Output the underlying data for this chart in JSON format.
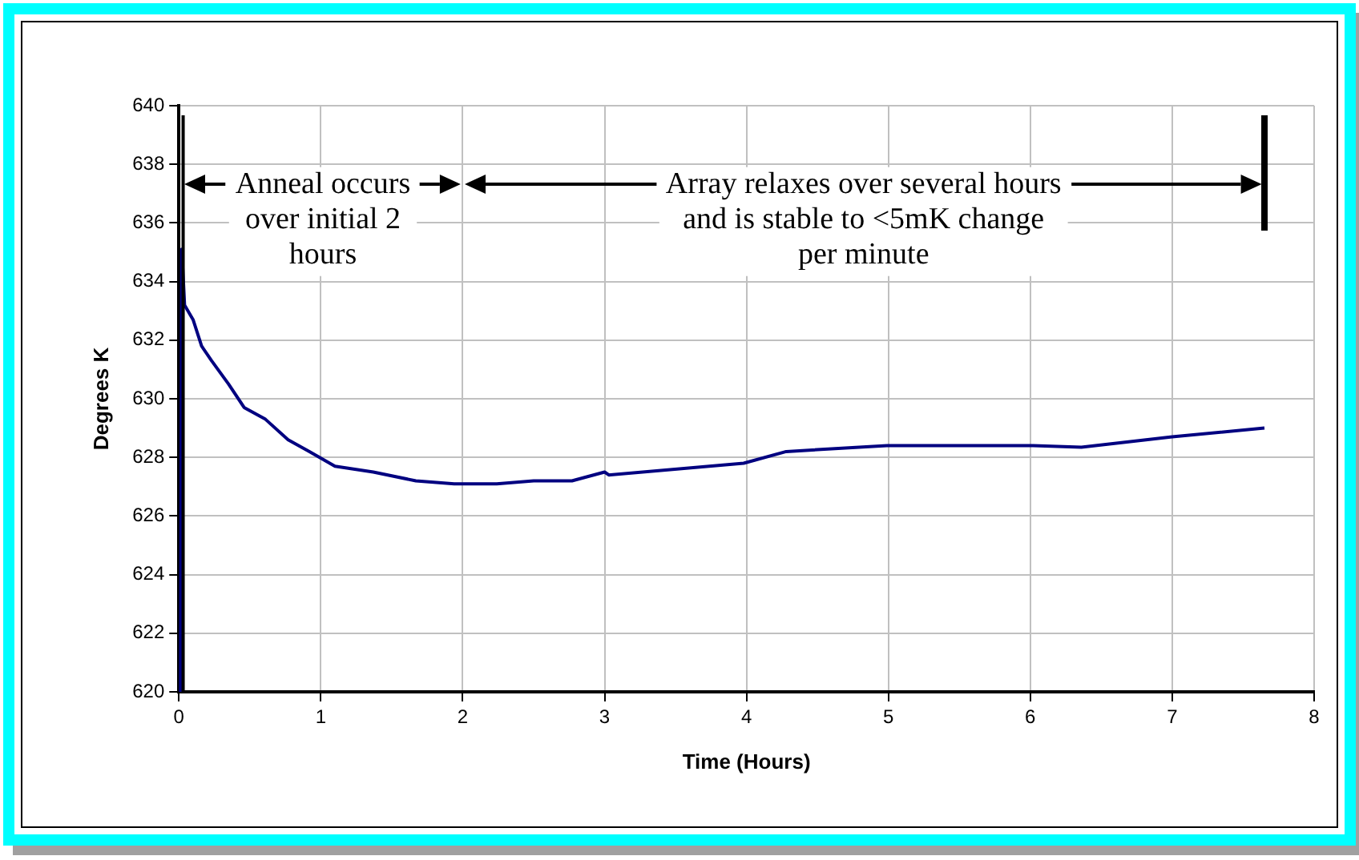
{
  "chart_data": {
    "type": "line",
    "xlabel": "Time (Hours)",
    "ylabel": "Degrees K",
    "x": [
      0.01,
      0.02,
      0.03,
      0.04,
      0.1,
      0.16,
      0.23,
      0.35,
      0.46,
      0.61,
      0.77,
      0.92,
      1.1,
      1.37,
      1.67,
      1.94,
      2.24,
      2.5,
      2.77,
      3.0,
      3.03,
      3.98,
      4.28,
      4.99,
      6.02,
      6.36,
      7.0,
      7.65
    ],
    "series": [
      {
        "color": "#000080",
        "values": [
          620,
          635.1,
          634.2,
          633.2,
          632.7,
          631.8,
          631.3,
          630.5,
          629.7,
          629.3,
          628.6,
          628.2,
          627.7,
          627.5,
          627.2,
          627.1,
          627.1,
          627.2,
          627.2,
          627.5,
          627.4,
          627.8,
          628.2,
          628.4,
          628.4,
          628.35,
          628.7,
          629.0
        ]
      }
    ],
    "xlim": [
      0,
      8
    ],
    "ylim": [
      620,
      640
    ],
    "xticks": [
      0,
      1,
      2,
      3,
      4,
      5,
      6,
      7,
      8
    ],
    "yticks": [
      620,
      622,
      624,
      626,
      628,
      630,
      632,
      634,
      636,
      638,
      640
    ],
    "grid": true,
    "marker": "none",
    "line_style": "solid",
    "ref_lines": [
      {
        "axis": "x",
        "value": 0.03,
        "color": "#000000"
      },
      {
        "axis": "x",
        "value": 7.65,
        "color": "#000000"
      }
    ],
    "annotations": [
      "Anneal occurs\nover initial 2\nhours",
      "Array relaxes over several hours\nand is stable to <5mK change\nper minute"
    ]
  }
}
